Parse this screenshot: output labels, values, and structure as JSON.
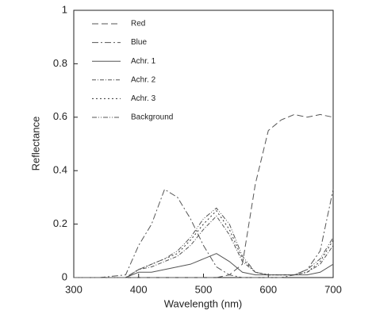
{
  "chart_data": {
    "type": "line",
    "x_label": "Wavelength (nm)",
    "y_label": "Reflectance",
    "x": [
      300,
      340,
      380,
      400,
      420,
      440,
      460,
      480,
      500,
      520,
      540,
      560,
      580,
      600,
      620,
      640,
      660,
      680,
      700
    ],
    "series": [
      {
        "name": "Red",
        "color": "#555555",
        "values": [
          0,
          0,
          0,
          0,
          0,
          0,
          0,
          0,
          0,
          0,
          0.01,
          0.05,
          0.35,
          0.55,
          0.59,
          0.61,
          0.6,
          0.61,
          0.6
        ]
      },
      {
        "name": "Blue",
        "color": "#555555",
        "values": [
          0,
          0,
          0.01,
          0.12,
          0.2,
          0.33,
          0.3,
          0.22,
          0.12,
          0.04,
          0.01,
          0,
          0,
          0,
          0,
          0.01,
          0.03,
          0.1,
          0.33
        ]
      },
      {
        "name": "Achr. 1",
        "color": "#555555",
        "values": [
          0,
          0,
          0,
          0.02,
          0.02,
          0.03,
          0.04,
          0.05,
          0.07,
          0.09,
          0.06,
          0.02,
          0.01,
          0.01,
          0.01,
          0.01,
          0.01,
          0.02,
          0.05
        ]
      },
      {
        "name": "Achr. 2",
        "color": "#555555",
        "values": [
          0,
          0,
          0,
          0.03,
          0.04,
          0.06,
          0.08,
          0.12,
          0.18,
          0.23,
          0.16,
          0.06,
          0.02,
          0.01,
          0.01,
          0.01,
          0.02,
          0.05,
          0.12
        ]
      },
      {
        "name": "Achr. 3",
        "color": "#333333",
        "values": [
          0,
          0,
          0,
          0.03,
          0.05,
          0.07,
          0.09,
          0.14,
          0.2,
          0.25,
          0.18,
          0.07,
          0.02,
          0.01,
          0.01,
          0.01,
          0.02,
          0.06,
          0.14
        ]
      },
      {
        "name": "Background",
        "color": "#555555",
        "values": [
          0,
          0,
          0,
          0.03,
          0.05,
          0.07,
          0.1,
          0.15,
          0.22,
          0.26,
          0.2,
          0.08,
          0.02,
          0.01,
          0.01,
          0.01,
          0.03,
          0.07,
          0.15
        ]
      }
    ],
    "xlim": [
      300,
      700
    ],
    "xticks": [
      300,
      400,
      500,
      600,
      700
    ],
    "ylim": [
      0,
      1
    ],
    "yticks": [
      0,
      0.2,
      0.4,
      0.6,
      0.8,
      1
    ],
    "legend": "upper left"
  }
}
